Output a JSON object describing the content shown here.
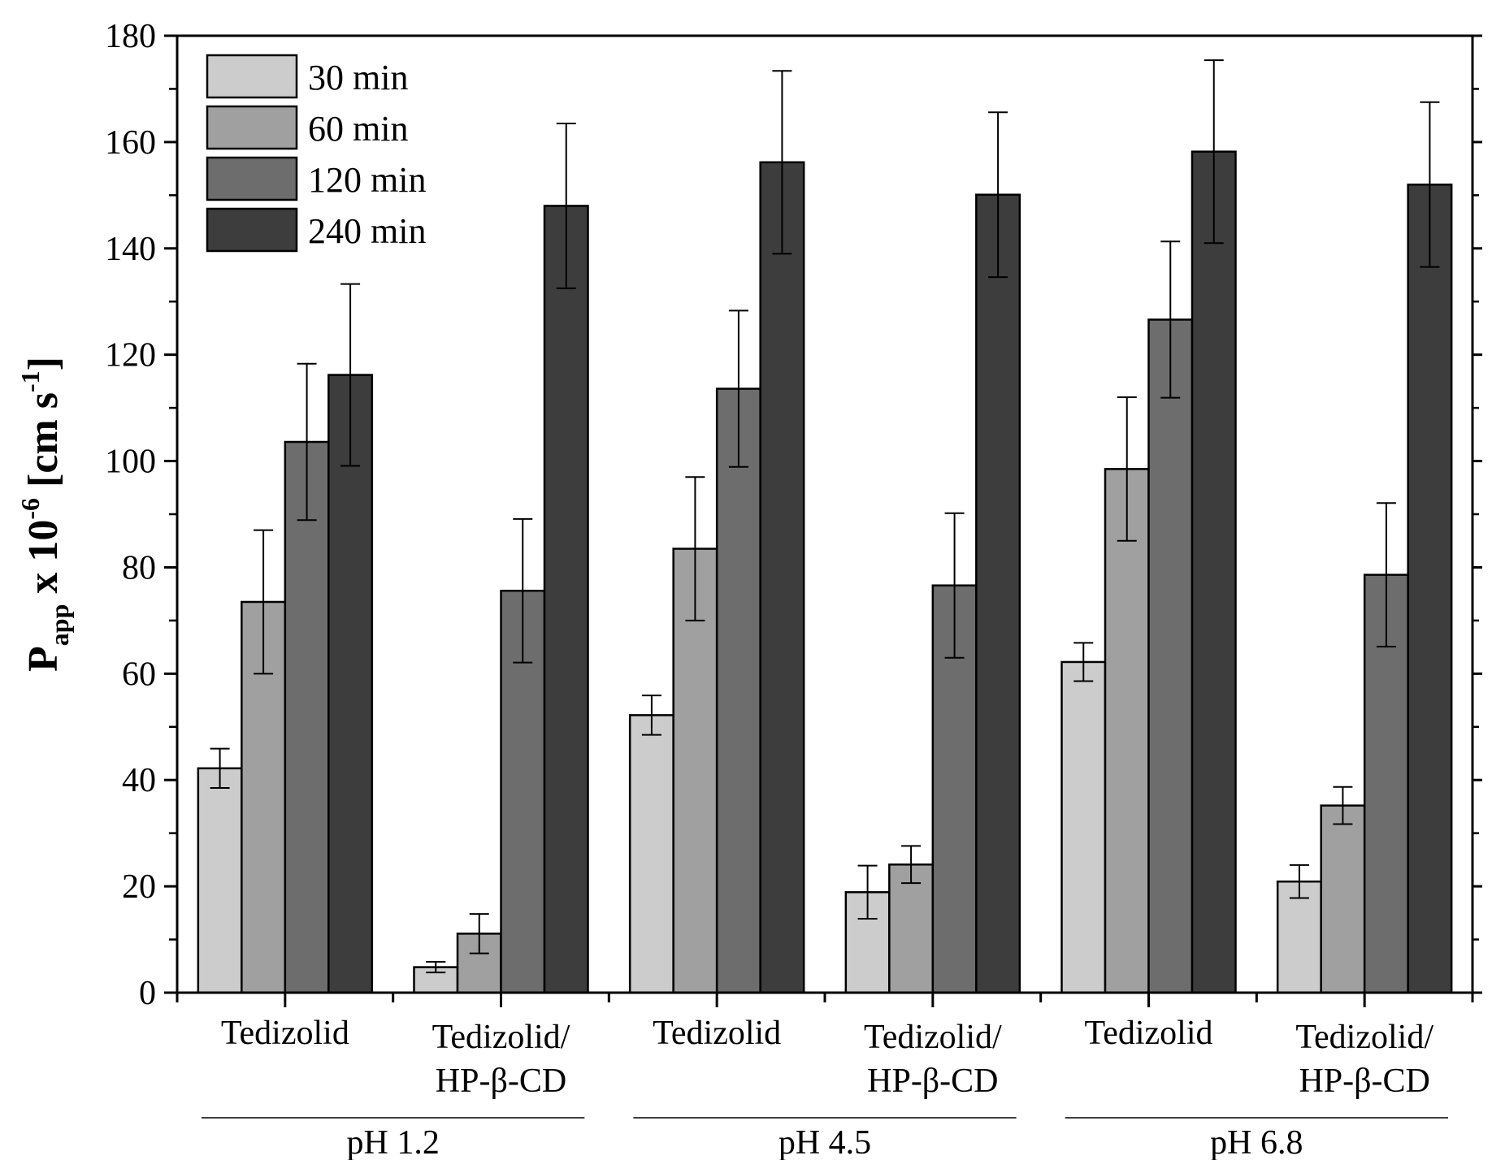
{
  "chart_data": {
    "type": "bar",
    "title": "",
    "xlabel": "",
    "ylabel": {
      "main": "P",
      "subscript": "app",
      "middle": " x 10",
      "superscript1": "-6",
      "unit_open": " [cm s",
      "superscript2": "-1",
      "unit_close": "]"
    },
    "ylim": [
      0,
      180
    ],
    "yticks": [
      "0",
      "20",
      "40",
      "60",
      "80",
      "100",
      "120",
      "140",
      "160",
      "180"
    ],
    "groups": [
      {
        "label": "pH 1.2",
        "categories": [
          {
            "line1": "Tedizolid",
            "line2": ""
          },
          {
            "line1": "Tedizolid/",
            "line2": "HP-β-CD"
          }
        ]
      },
      {
        "label": "pH 4.5",
        "categories": [
          {
            "line1": "Tedizolid",
            "line2": ""
          },
          {
            "line1": "Tedizolid/",
            "line2": "HP-β-CD"
          }
        ]
      },
      {
        "label": "pH 6.8",
        "categories": [
          {
            "line1": "Tedizolid",
            "line2": ""
          },
          {
            "line1": "Tedizolid/",
            "line2": "HP-β-CD"
          }
        ]
      }
    ],
    "series": [
      {
        "name": "30 min",
        "color": "#cccccc",
        "values": [
          42.2,
          4.8,
          52.2,
          18.9,
          62.2,
          20.9
        ],
        "errors": [
          3.7,
          1.0,
          3.7,
          5.0,
          3.6,
          3.1
        ]
      },
      {
        "name": "60 min",
        "color": "#a0a0a0",
        "values": [
          73.5,
          11.1,
          83.5,
          24.1,
          98.5,
          35.2
        ],
        "errors": [
          13.5,
          3.7,
          13.5,
          3.5,
          13.5,
          3.5
        ]
      },
      {
        "name": "120 min",
        "color": "#6d6d6d",
        "values": [
          103.6,
          75.6,
          113.6,
          76.6,
          126.6,
          78.6
        ],
        "errors": [
          14.7,
          13.5,
          14.7,
          13.6,
          14.7,
          13.5
        ]
      },
      {
        "name": "240 min",
        "color": "#3d3d3d",
        "values": [
          116.2,
          148.0,
          156.2,
          150.1,
          158.2,
          152.0
        ],
        "errors": [
          17.1,
          15.5,
          17.2,
          15.5,
          17.2,
          15.5
        ]
      }
    ],
    "legend": {
      "position": "top-left"
    },
    "grid": false
  }
}
